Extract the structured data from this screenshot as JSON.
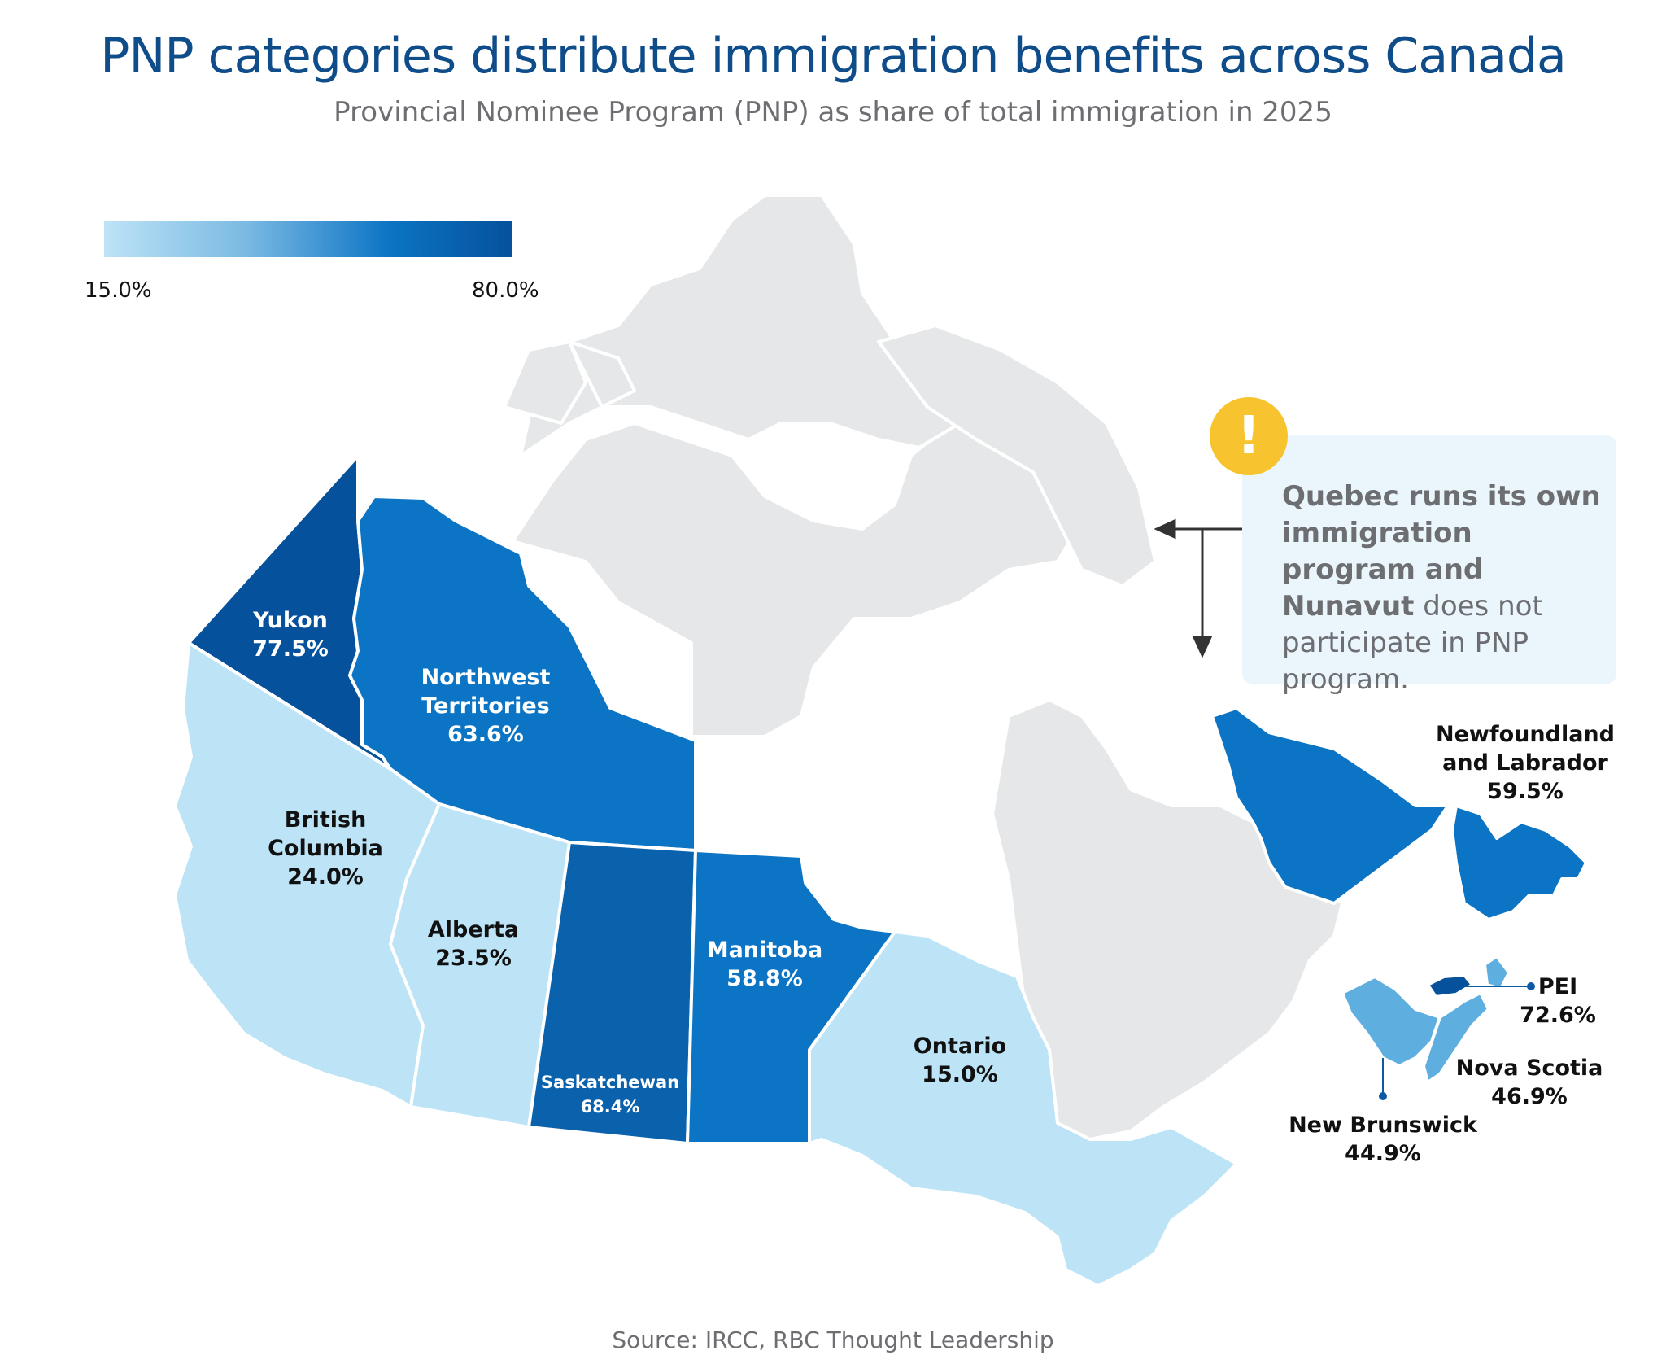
{
  "title": "PNP categories distribute immigration benefits across Canada",
  "subtitle": "Provincial Nominee Program (PNP) as share of total immigration in 2025",
  "legend": {
    "min_label": "15.0%",
    "max_label": "80.0%",
    "min_color": "#bde3f6",
    "max_color": "#06519b"
  },
  "regions": {
    "yukon": {
      "name": "Yukon",
      "value_label": "77.5%",
      "value": 77.5,
      "color": "#06519b"
    },
    "nwt": {
      "name_line1": "Northwest",
      "name_line2": "Territories",
      "value_label": "63.6%",
      "value": 63.6,
      "color": "#0b74c4"
    },
    "bc": {
      "name_line1": "British",
      "name_line2": "Columbia",
      "value_label": "24.0%",
      "value": 24.0,
      "color": "#bde3f6"
    },
    "alberta": {
      "name": "Alberta",
      "value_label": "23.5%",
      "value": 23.5,
      "color": "#bde3f6"
    },
    "saskatchewan": {
      "name": "Saskatchewan",
      "value_label": "68.4%",
      "value": 68.4,
      "color": "#0a62ad"
    },
    "manitoba": {
      "name": "Manitoba",
      "value_label": "58.8%",
      "value": 58.8,
      "color": "#0b74c4"
    },
    "ontario": {
      "name": "Ontario",
      "value_label": "15.0%",
      "value": 15.0,
      "color": "#bde3f6"
    },
    "nl": {
      "name_line1": "Newfoundland",
      "name_line2": "and Labrador",
      "value_label": "59.5%",
      "value": 59.5,
      "color": "#0b74c4"
    },
    "pei": {
      "name": "PEI",
      "value_label": "72.6%",
      "value": 72.6,
      "color": "#06519b"
    },
    "ns": {
      "name": "Nova Scotia",
      "value_label": "46.9%",
      "value": 46.9,
      "color": "#5faee0"
    },
    "nb": {
      "name": "New Brunswick",
      "value_label": "44.9%",
      "value": 44.9,
      "color": "#5faee0"
    },
    "quebec": {
      "color": "#e6e7e8"
    },
    "nunavut": {
      "color": "#e6e7e8"
    }
  },
  "note": {
    "bold_1": "Quebec runs its own immigration program and Nunavut",
    "text_1": " does not participate in PNP program.",
    "icon": "exclamation-icon",
    "icon_color": "#f7c42f"
  },
  "source": "Source: IRCC, RBC Thought Leadership"
}
